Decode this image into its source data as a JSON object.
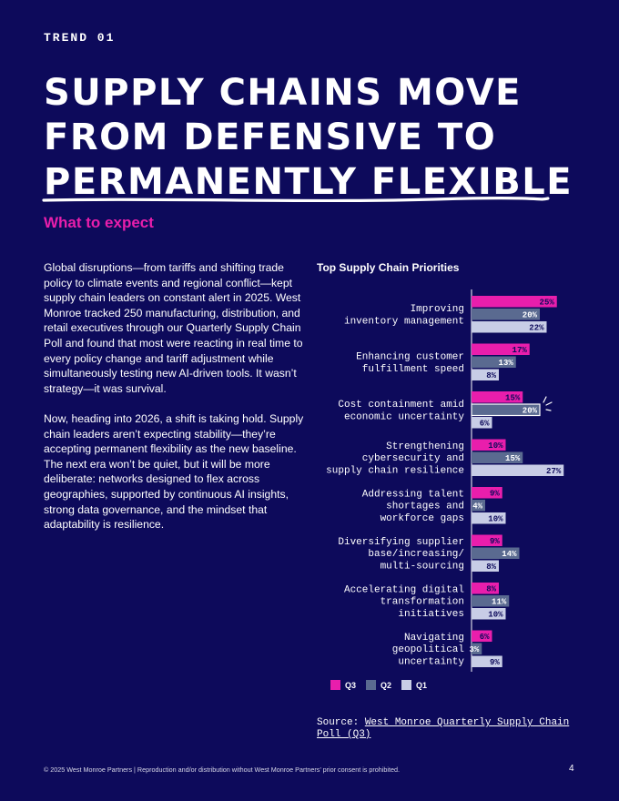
{
  "eyebrow": "TREND 01",
  "headline": {
    "line1": "SUPPLY CHAINS MOVE",
    "line2": "FROM DEFENSIVE TO",
    "line3": "PERMANENTLY FLEXIBLE"
  },
  "subhead": "What to expect",
  "body": {
    "p1": "Global disruptions—from tariffs and shifting trade policy to climate events and regional conflict—kept supply chain leaders on constant alert in 2025. West Monroe tracked 250 manufacturing, distribution, and retail executives through our Quarterly Supply Chain Poll and found that most were reacting in real time to every policy change and tariff adjustment while simultaneously testing new AI-driven tools. It wasn’t strategy—it was survival.",
    "p2": "Now, heading into 2026, a shift is taking hold. Supply chain leaders aren’t expecting stability—they’re accepting permanent flexibility as the new baseline. The next era won’t be quiet, but it will be more deliberate: networks designed to flex across geographies, supported by continuous AI insights, strong data governance, and the mindset that adaptability is resilience."
  },
  "colors": {
    "background": "#0d0a5b",
    "accent": "#e91eac",
    "q3": "#e91eac",
    "q2": "#5a6a90",
    "q1": "#c8cde6"
  },
  "chart_data": {
    "type": "bar",
    "orientation": "horizontal",
    "title": "Top Supply Chain Priorities",
    "categories": [
      [
        "Improving",
        "inventory management"
      ],
      [
        "Enhancing customer",
        "fulfillment speed"
      ],
      [
        "Cost containment amid",
        "economic uncertainty"
      ],
      [
        "Strengthening",
        "cybersecurity and",
        "supply chain resilience"
      ],
      [
        "Addressing talent",
        "shortages and",
        "workforce gaps"
      ],
      [
        "Diversifying supplier",
        "base/increasing/",
        "multi-sourcing"
      ],
      [
        "Accelerating digital",
        "transformation",
        "initiatives"
      ],
      [
        "Navigating",
        "geopolitical",
        "uncertainty"
      ]
    ],
    "series": [
      {
        "name": "Q3",
        "values": [
          25,
          17,
          15,
          10,
          9,
          9,
          8,
          6
        ]
      },
      {
        "name": "Q2",
        "values": [
          20,
          13,
          20,
          15,
          4,
          14,
          11,
          3
        ]
      },
      {
        "name": "Q1",
        "values": [
          22,
          8,
          6,
          27,
          10,
          8,
          10,
          9
        ]
      }
    ],
    "value_suffix": "%",
    "highlight": {
      "category_index": 2,
      "series": "Q2"
    },
    "legend": [
      "Q3",
      "Q2",
      "Q1"
    ],
    "legend_position": "bottom-left"
  },
  "source": {
    "prefix": "Source: ",
    "link": "West Monroe Quarterly Supply Chain Poll (Q3)"
  },
  "footer": "© 2025 West Monroe Partners  |  Reproduction and/or distribution without West Monroe Partners’ prior consent is prohibited.",
  "page_number": "4"
}
